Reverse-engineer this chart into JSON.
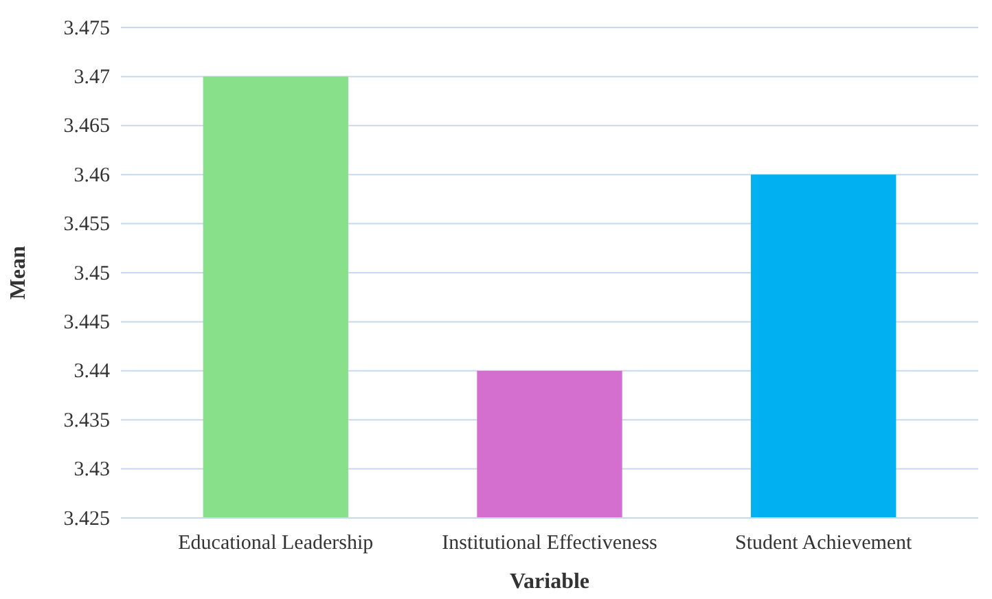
{
  "chart_data": {
    "type": "bar",
    "xlabel": "Variable",
    "ylabel": "Mean",
    "categories": [
      "Educational Leadership",
      "Institutional Effectiveness",
      "Student Achievement"
    ],
    "values": [
      3.47,
      3.44,
      3.46
    ],
    "colors": [
      "#88e08a",
      "#d46fcf",
      "#00b0f0"
    ],
    "ylim": [
      3.425,
      3.475
    ],
    "yticks": [
      3.425,
      3.43,
      3.435,
      3.44,
      3.445,
      3.45,
      3.455,
      3.46,
      3.465,
      3.47,
      3.475
    ],
    "grid": "y"
  }
}
